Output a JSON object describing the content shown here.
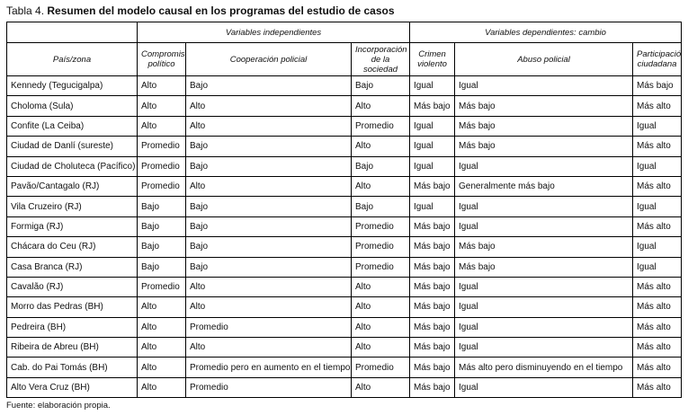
{
  "title": {
    "label": "Tabla 4.",
    "text": "Resumen del modelo causal en los programas del estudio de casos"
  },
  "table": {
    "group_headers": [
      "Variables independientes",
      "Variables dependientes: cambio"
    ],
    "columns": [
      "País/zona",
      "Compromiso político",
      "Cooperación policial",
      "Incorporación de la sociedad",
      "Crimen violento",
      "Abuso policial",
      "Participación ciudadana"
    ],
    "rows": [
      [
        "Kennedy (Tegucigalpa)",
        "Alto",
        "Bajo",
        "Bajo",
        "Igual",
        "Igual",
        "Más bajo"
      ],
      [
        "Choloma (Sula)",
        "Alto",
        "Alto",
        "Alto",
        "Más bajo",
        "Más bajo",
        "Más alto"
      ],
      [
        "Confite (La Ceiba)",
        "Alto",
        "Alto",
        "Promedio",
        "Igual",
        "Más bajo",
        "Igual"
      ],
      [
        "Ciudad de Danlí (sureste)",
        "Promedio",
        "Bajo",
        "Alto",
        "Igual",
        "Más bajo",
        "Más alto"
      ],
      [
        "Ciudad de Choluteca (Pacífico)",
        "Promedio",
        "Bajo",
        "Bajo",
        "Igual",
        "Igual",
        "Igual"
      ],
      [
        "Pavão/Cantagalo (RJ)",
        "Promedio",
        "Alto",
        "Alto",
        "Más bajo",
        "Generalmente más bajo",
        "Más alto"
      ],
      [
        "Vila Cruzeiro (RJ)",
        "Bajo",
        "Bajo",
        "Bajo",
        "Igual",
        "Igual",
        "Igual"
      ],
      [
        "Formiga (RJ)",
        "Bajo",
        "Bajo",
        "Promedio",
        "Más bajo",
        "Igual",
        "Más alto"
      ],
      [
        "Chácara do Ceu (RJ)",
        "Bajo",
        "Bajo",
        "Promedio",
        "Más bajo",
        "Más bajo",
        "Igual"
      ],
      [
        "Casa Branca (RJ)",
        "Bajo",
        "Bajo",
        "Promedio",
        "Más bajo",
        "Más bajo",
        "Igual"
      ],
      [
        "Cavalão (RJ)",
        "Promedio",
        "Alto",
        "Alto",
        "Más bajo",
        "Igual",
        "Más alto"
      ],
      [
        "Morro das Pedras (BH)",
        "Alto",
        "Alto",
        "Alto",
        "Más bajo",
        "Igual",
        "Más alto"
      ],
      [
        "Pedreira (BH)",
        "Alto",
        "Promedio",
        "Alto",
        "Más bajo",
        "Igual",
        "Más alto"
      ],
      [
        "Ribeira de Abreu (BH)",
        "Alto",
        "Alto",
        "Alto",
        "Más bajo",
        "Igual",
        "Más alto"
      ],
      [
        "Cab. do Pai Tomás (BH)",
        "Alto",
        "Promedio pero en aumento en el tiempo",
        "Promedio",
        "Más bajo",
        "Más alto pero disminuyendo en el tiempo",
        "Más alto"
      ],
      [
        "Alto Vera Cruz (BH)",
        "Alto",
        "Promedio",
        "Alto",
        "Más bajo",
        "Igual",
        "Más alto"
      ]
    ]
  },
  "footer": "Fuente: elaboración propia."
}
